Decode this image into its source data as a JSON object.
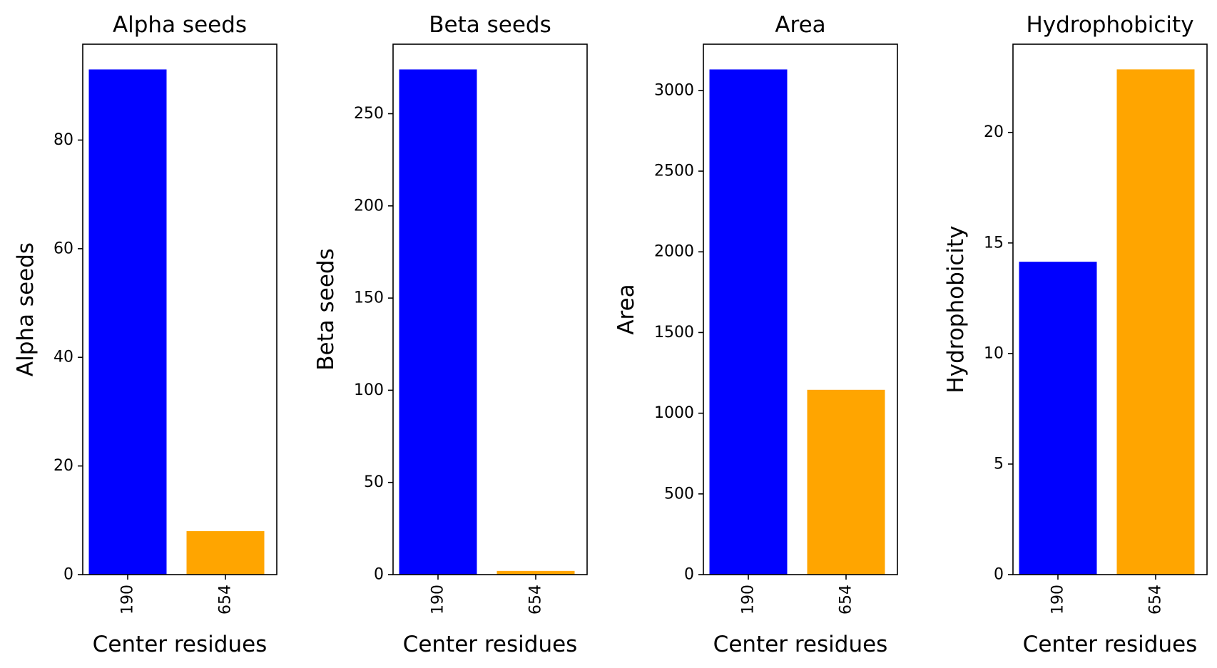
{
  "figure": {
    "colors": {
      "series_1": "#0000ff",
      "series_2": "#ffa500"
    }
  },
  "chart_data": [
    {
      "type": "bar",
      "title": "Alpha seeds",
      "xlabel": "Center residues",
      "ylabel": "Alpha seeds",
      "categories": [
        "190",
        "654"
      ],
      "values": [
        93,
        8
      ],
      "ylim": [
        0,
        97.65
      ],
      "yticks": [
        0,
        20,
        40,
        60,
        80
      ],
      "bar_colors": [
        "#0000ff",
        "#ffa500"
      ],
      "grid": false
    },
    {
      "type": "bar",
      "title": "Beta seeds",
      "xlabel": "Center residues",
      "ylabel": "Beta seeds",
      "categories": [
        "190",
        "654"
      ],
      "values": [
        274,
        2
      ],
      "ylim": [
        0,
        287.7
      ],
      "yticks": [
        0,
        50,
        100,
        150,
        200,
        250
      ],
      "bar_colors": [
        "#0000ff",
        "#ffa500"
      ],
      "grid": false
    },
    {
      "type": "bar",
      "title": "Area",
      "xlabel": "Center residues",
      "ylabel": "Area",
      "categories": [
        "190",
        "654"
      ],
      "values": [
        3130,
        1145
      ],
      "ylim": [
        0,
        3286.5
      ],
      "yticks": [
        0,
        500,
        1000,
        1500,
        2000,
        2500,
        3000
      ],
      "bar_colors": [
        "#0000ff",
        "#ffa500"
      ],
      "grid": false
    },
    {
      "type": "bar",
      "title": "Hydrophobicity",
      "xlabel": "Center residues",
      "ylabel": "Hydrophobicity",
      "categories": [
        "190",
        "654"
      ],
      "values": [
        14.15,
        22.85
      ],
      "ylim": [
        0,
        23.99
      ],
      "yticks": [
        0,
        5,
        10,
        15,
        20
      ],
      "bar_colors": [
        "#0000ff",
        "#ffa500"
      ],
      "grid": false
    }
  ]
}
